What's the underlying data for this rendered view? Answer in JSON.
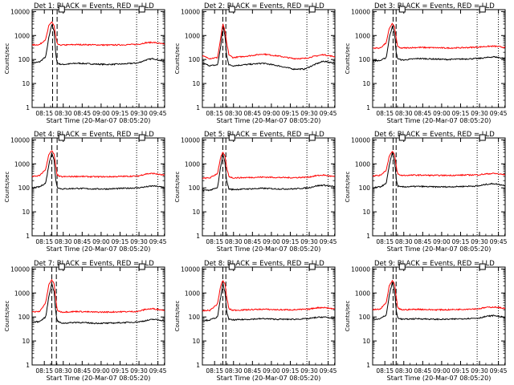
{
  "figure": {
    "ylabel": "Counts/sec",
    "xlabel": "Start Time (20-Mar-07 08:05:20)",
    "x_ticks": [
      "08:15",
      "08:30",
      "08:45",
      "09:00",
      "09:15",
      "09:30",
      "09:45"
    ],
    "x_tick_hours": [
      0.1611,
      0.4111,
      0.6611,
      0.9111,
      1.1611,
      1.4111,
      1.6611
    ],
    "xlim_hours": [
      0,
      1.75
    ],
    "y_ticks": [
      "1",
      "10",
      "100",
      "1000",
      "10000"
    ],
    "y_tick_values": [
      1,
      10,
      100,
      1000,
      10000
    ],
    "ylim": [
      1,
      12000
    ],
    "yscale": "log",
    "colors": {
      "events": "#000000",
      "lld": "#ff0000",
      "axes": "#000000"
    },
    "marker_box_hours": [
      0.39,
      1.45
    ]
  },
  "chart_data": [
    {
      "type": "line",
      "title": "Det 1: BLACK = Events, RED = LLD",
      "dashed_lines_hours": [
        0.27,
        0.33
      ],
      "dotted_lines_hours": [
        1.38,
        1.66
      ],
      "series": [
        {
          "name": "Events",
          "x": [
            0,
            0.1,
            0.18,
            0.22,
            0.26,
            0.29,
            0.31,
            0.33,
            0.36,
            0.4,
            0.6,
            0.8,
            1.0,
            1.2,
            1.4,
            1.5,
            1.6,
            1.75
          ],
          "y": [
            70,
            80,
            130,
            800,
            3000,
            1500,
            200,
            75,
            65,
            62,
            70,
            65,
            62,
            65,
            72,
            95,
            110,
            80
          ]
        },
        {
          "name": "LLD",
          "x": [
            0,
            0.1,
            0.18,
            0.22,
            0.26,
            0.29,
            0.31,
            0.33,
            0.36,
            0.4,
            0.6,
            0.8,
            1.0,
            1.2,
            1.4,
            1.5,
            1.6,
            1.75
          ],
          "y": [
            400,
            420,
            700,
            2500,
            3800,
            2500,
            1000,
            450,
            400,
            400,
            420,
            410,
            400,
            410,
            430,
            500,
            520,
            430
          ]
        }
      ]
    },
    {
      "type": "line",
      "title": "Det 2: BLACK = Events, RED = LLD",
      "dashed_lines_hours": [
        0.27,
        0.31
      ],
      "dotted_lines_hours": [
        1.38,
        1.66
      ],
      "series": [
        {
          "name": "Events",
          "x": [
            0,
            0.1,
            0.2,
            0.24,
            0.27,
            0.3,
            0.32,
            0.35,
            0.4,
            0.6,
            0.8,
            1.0,
            1.2,
            1.35,
            1.5,
            1.6,
            1.75
          ],
          "y": [
            70,
            55,
            60,
            300,
            2800,
            900,
            150,
            60,
            55,
            62,
            70,
            55,
            40,
            40,
            65,
            85,
            70
          ]
        },
        {
          "name": "LLD",
          "x": [
            0,
            0.1,
            0.2,
            0.24,
            0.27,
            0.3,
            0.32,
            0.35,
            0.4,
            0.6,
            0.8,
            1.0,
            1.2,
            1.35,
            1.5,
            1.6,
            1.75
          ],
          "y": [
            140,
            110,
            120,
            700,
            3000,
            1500,
            500,
            160,
            120,
            140,
            170,
            140,
            110,
            110,
            140,
            160,
            130
          ]
        }
      ]
    },
    {
      "type": "line",
      "title": "Det 3: BLACK = Events, RED = LLD",
      "dashed_lines_hours": [
        0.27,
        0.31
      ],
      "dotted_lines_hours": [
        1.38,
        1.66
      ],
      "series": [
        {
          "name": "Events",
          "x": [
            0,
            0.1,
            0.18,
            0.22,
            0.26,
            0.29,
            0.31,
            0.33,
            0.36,
            0.4,
            0.6,
            0.8,
            1.0,
            1.2,
            1.4,
            1.5,
            1.6,
            1.75
          ],
          "y": [
            90,
            90,
            120,
            800,
            2500,
            1200,
            200,
            110,
            100,
            95,
            110,
            105,
            100,
            105,
            110,
            120,
            130,
            110
          ]
        },
        {
          "name": "LLD",
          "x": [
            0,
            0.1,
            0.18,
            0.22,
            0.26,
            0.29,
            0.31,
            0.33,
            0.36,
            0.4,
            0.6,
            0.8,
            1.0,
            1.2,
            1.4,
            1.5,
            1.6,
            1.75
          ],
          "y": [
            300,
            300,
            500,
            2000,
            3200,
            2200,
            800,
            350,
            300,
            300,
            320,
            310,
            300,
            310,
            330,
            350,
            360,
            320
          ]
        }
      ]
    },
    {
      "type": "line",
      "title": "Det 4: BLACK = Events, RED = LLD",
      "dashed_lines_hours": [
        0.26,
        0.33
      ],
      "dotted_lines_hours": [
        1.38,
        1.66
      ],
      "series": [
        {
          "name": "Events",
          "x": [
            0,
            0.1,
            0.18,
            0.22,
            0.26,
            0.29,
            0.31,
            0.33,
            0.36,
            0.4,
            0.6,
            0.8,
            1.0,
            1.2,
            1.4,
            1.5,
            1.6,
            1.75
          ],
          "y": [
            100,
            110,
            160,
            900,
            3000,
            1400,
            250,
            110,
            95,
            90,
            95,
            90,
            90,
            95,
            100,
            110,
            120,
            105
          ]
        },
        {
          "name": "LLD",
          "x": [
            0,
            0.1,
            0.18,
            0.22,
            0.26,
            0.29,
            0.31,
            0.33,
            0.36,
            0.4,
            0.6,
            0.8,
            1.0,
            1.2,
            1.4,
            1.5,
            1.6,
            1.75
          ],
          "y": [
            300,
            320,
            600,
            2500,
            3500,
            2500,
            900,
            350,
            300,
            290,
            300,
            290,
            290,
            300,
            310,
            380,
            400,
            330
          ]
        }
      ]
    },
    {
      "type": "line",
      "title": "Det 5: BLACK = Events, RED = LLD",
      "dashed_lines_hours": [
        0.27,
        0.31
      ],
      "dotted_lines_hours": [
        1.38,
        1.66
      ],
      "series": [
        {
          "name": "Events",
          "x": [
            0,
            0.1,
            0.2,
            0.24,
            0.27,
            0.3,
            0.32,
            0.35,
            0.4,
            0.6,
            0.8,
            1.0,
            1.2,
            1.4,
            1.5,
            1.6,
            1.75
          ],
          "y": [
            80,
            80,
            100,
            700,
            2800,
            1000,
            200,
            90,
            85,
            90,
            95,
            90,
            90,
            100,
            120,
            130,
            110
          ]
        },
        {
          "name": "LLD",
          "x": [
            0,
            0.1,
            0.2,
            0.24,
            0.27,
            0.3,
            0.32,
            0.35,
            0.4,
            0.6,
            0.8,
            1.0,
            1.2,
            1.4,
            1.5,
            1.6,
            1.75
          ],
          "y": [
            250,
            260,
            400,
            1800,
            3000,
            2000,
            700,
            300,
            260,
            270,
            280,
            270,
            265,
            280,
            320,
            340,
            290
          ]
        }
      ]
    },
    {
      "type": "line",
      "title": "Det 6: BLACK = Events, RED = LLD",
      "dashed_lines_hours": [
        0.27,
        0.31
      ],
      "dotted_lines_hours": [
        1.38,
        1.66
      ],
      "series": [
        {
          "name": "Events",
          "x": [
            0,
            0.1,
            0.18,
            0.22,
            0.26,
            0.29,
            0.31,
            0.33,
            0.36,
            0.4,
            0.6,
            0.8,
            1.0,
            1.2,
            1.4,
            1.5,
            1.6,
            1.75
          ],
          "y": [
            100,
            110,
            150,
            900,
            3000,
            1300,
            250,
            120,
            110,
            110,
            115,
            110,
            110,
            115,
            120,
            140,
            150,
            125
          ]
        },
        {
          "name": "LLD",
          "x": [
            0,
            0.1,
            0.18,
            0.22,
            0.26,
            0.29,
            0.31,
            0.33,
            0.36,
            0.4,
            0.6,
            0.8,
            1.0,
            1.2,
            1.4,
            1.5,
            1.6,
            1.75
          ],
          "y": [
            320,
            330,
            550,
            2200,
            3300,
            2400,
            850,
            380,
            340,
            330,
            340,
            330,
            330,
            340,
            350,
            380,
            400,
            350
          ]
        }
      ]
    },
    {
      "type": "line",
      "title": "Det 7: BLACK = Events, RED = LLD",
      "dashed_lines_hours": [
        0.26,
        0.32
      ],
      "dotted_lines_hours": [
        1.38,
        1.66
      ],
      "series": [
        {
          "name": "Events",
          "x": [
            0,
            0.1,
            0.18,
            0.22,
            0.26,
            0.29,
            0.31,
            0.33,
            0.36,
            0.4,
            0.6,
            0.8,
            1.0,
            1.2,
            1.4,
            1.5,
            1.6,
            1.75
          ],
          "y": [
            60,
            65,
            100,
            700,
            2500,
            1100,
            180,
            70,
            60,
            55,
            60,
            55,
            55,
            58,
            62,
            70,
            80,
            70
          ]
        },
        {
          "name": "LLD",
          "x": [
            0,
            0.1,
            0.18,
            0.22,
            0.26,
            0.29,
            0.31,
            0.33,
            0.36,
            0.4,
            0.6,
            0.8,
            1.0,
            1.2,
            1.4,
            1.5,
            1.6,
            1.75
          ],
          "y": [
            160,
            170,
            400,
            2200,
            3500,
            2500,
            700,
            200,
            170,
            160,
            170,
            160,
            160,
            165,
            170,
            210,
            220,
            190
          ]
        }
      ]
    },
    {
      "type": "line",
      "title": "Det 8: BLACK = Events, RED = LLD",
      "dashed_lines_hours": [
        0.27,
        0.31
      ],
      "dotted_lines_hours": [
        1.38,
        1.66
      ],
      "series": [
        {
          "name": "Events",
          "x": [
            0,
            0.1,
            0.2,
            0.24,
            0.27,
            0.3,
            0.32,
            0.35,
            0.4,
            0.6,
            0.8,
            1.0,
            1.2,
            1.4,
            1.5,
            1.6,
            1.75
          ],
          "y": [
            70,
            75,
            100,
            600,
            2600,
            1000,
            180,
            80,
            75,
            80,
            85,
            80,
            80,
            85,
            95,
            100,
            85
          ]
        },
        {
          "name": "LLD",
          "x": [
            0,
            0.1,
            0.2,
            0.24,
            0.27,
            0.3,
            0.32,
            0.35,
            0.4,
            0.6,
            0.8,
            1.0,
            1.2,
            1.4,
            1.5,
            1.6,
            1.75
          ],
          "y": [
            180,
            190,
            350,
            1900,
            3300,
            2300,
            700,
            220,
            190,
            200,
            210,
            200,
            200,
            210,
            240,
            250,
            215
          ]
        }
      ]
    },
    {
      "type": "line",
      "title": "Det 9: BLACK = Events, RED = LLD",
      "dashed_lines_hours": [
        0.27,
        0.31
      ],
      "dotted_lines_hours": [
        1.38,
        1.66
      ],
      "series": [
        {
          "name": "Events",
          "x": [
            0,
            0.1,
            0.18,
            0.22,
            0.26,
            0.29,
            0.31,
            0.33,
            0.36,
            0.4,
            0.6,
            0.8,
            1.0,
            1.2,
            1.4,
            1.5,
            1.6,
            1.75
          ],
          "y": [
            80,
            85,
            120,
            800,
            2800,
            1200,
            200,
            95,
            85,
            80,
            85,
            80,
            80,
            85,
            90,
            105,
            115,
            95
          ]
        },
        {
          "name": "LLD",
          "x": [
            0,
            0.1,
            0.18,
            0.22,
            0.26,
            0.29,
            0.31,
            0.33,
            0.36,
            0.4,
            0.6,
            0.8,
            1.0,
            1.2,
            1.4,
            1.5,
            1.6,
            1.75
          ],
          "y": [
            200,
            210,
            400,
            2000,
            3200,
            2300,
            750,
            240,
            210,
            200,
            210,
            200,
            200,
            210,
            220,
            250,
            260,
            230
          ]
        }
      ]
    }
  ]
}
